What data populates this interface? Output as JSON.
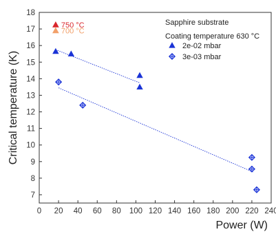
{
  "chart_data": {
    "type": "scatter",
    "xlabel": "Power (W)",
    "ylabel": "Critical temperature (K)",
    "xlim": [
      0,
      240
    ],
    "ylim": [
      6.5,
      18
    ],
    "xticks": [
      0,
      20,
      40,
      60,
      80,
      100,
      120,
      140,
      160,
      180,
      200,
      220,
      240
    ],
    "yticks": [
      7,
      8,
      9,
      10,
      11,
      12,
      13,
      14,
      15,
      16,
      17,
      18
    ],
    "grid": false,
    "legend": {
      "placement": "top-right",
      "header_lines": [
        "Sapphire substrate",
        "Coating temperature 630 °C"
      ]
    },
    "series": [
      {
        "name": "2e-02 mbar",
        "marker": "triangle",
        "color": "#1a33d6",
        "points": [
          [
            17,
            15.65
          ],
          [
            33,
            15.5
          ],
          [
            104,
            14.2
          ],
          [
            104,
            13.5
          ]
        ],
        "fit_line": [
          [
            17,
            15.75
          ],
          [
            104,
            13.75
          ]
        ]
      },
      {
        "name": "3e-03 mbar",
        "marker": "crossed-diamond",
        "color": "#1a33d6",
        "points": [
          [
            20,
            13.8
          ],
          [
            45,
            12.4
          ],
          [
            220,
            9.25
          ],
          [
            220,
            8.55
          ],
          [
            225,
            7.3
          ]
        ],
        "fit_line": [
          [
            20,
            13.45
          ],
          [
            222,
            8.35
          ]
        ]
      }
    ],
    "annotations": [
      {
        "label": "750 °C",
        "x": 17,
        "y": 17.25,
        "color": "#d9262c"
      },
      {
        "label": "700 °C",
        "x": 17,
        "y": 16.9,
        "color": "#f2a06a"
      }
    ]
  }
}
